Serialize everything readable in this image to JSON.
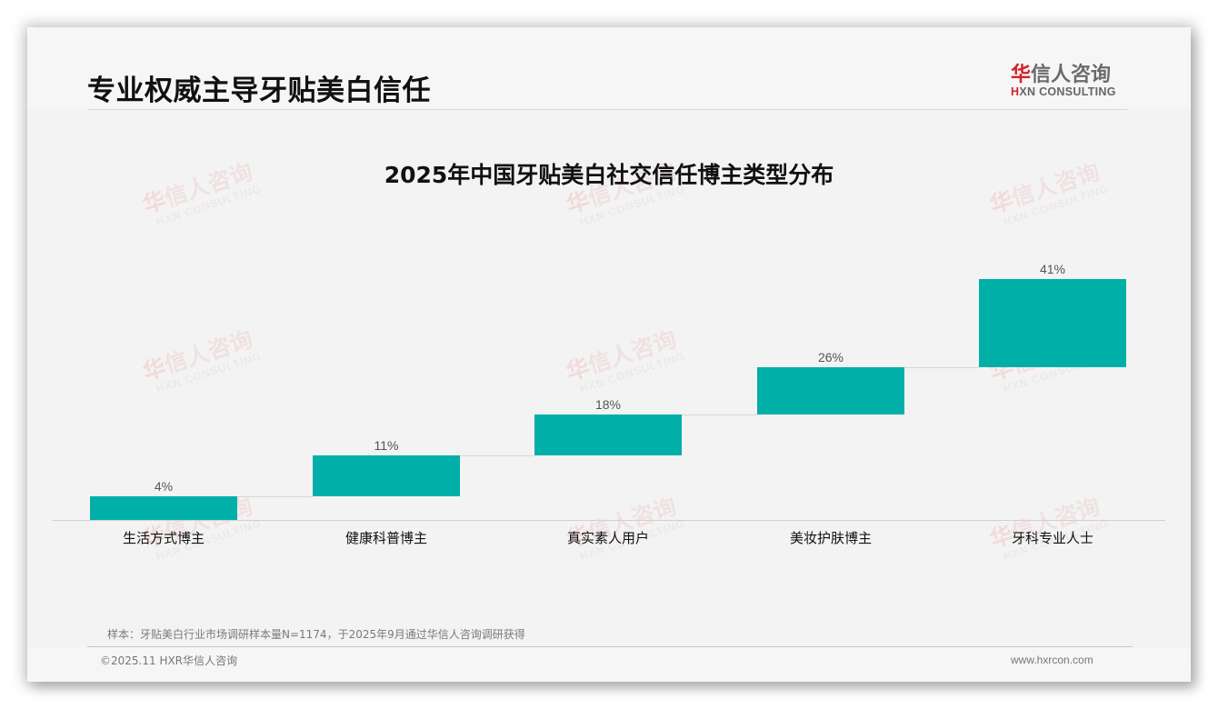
{
  "page": {
    "title": "专业权威主导牙贴美白信任"
  },
  "logo": {
    "cn_accent": "华",
    "cn_rest": "信人咨询",
    "en_accent": "H",
    "en_rest": "XN CONSULTING"
  },
  "watermark": {
    "cn_accent": "华",
    "cn_rest": "信人咨询",
    "en": "HXN CONSULTING"
  },
  "colors": {
    "bar": "#00b0a8",
    "logo_accent": "#d1222a"
  },
  "chart_data": {
    "type": "bar",
    "subtype": "waterfall",
    "title": "2025年中国牙贴美白社交信任博主类型分布",
    "categories": [
      "生活方式博主",
      "健康科普博主",
      "真实素人用户",
      "美妆护肤博主",
      "牙科专业人士"
    ],
    "values": [
      4,
      7,
      7,
      8,
      15
    ],
    "cumulative": [
      4,
      11,
      18,
      26,
      41
    ],
    "labels": [
      "4%",
      "11%",
      "18%",
      "26%",
      "41%"
    ],
    "xlabel": "",
    "ylabel": "",
    "ylim": [
      0,
      45
    ],
    "grid": false,
    "legend": "none",
    "unit": "%"
  },
  "footer": {
    "note": "样本：牙贴美白行业市场调研样本量N=1174，于2025年9月通过华信人咨询调研获得",
    "copyright": "©2025.11 HXR华信人咨询",
    "website": "www.hxrcon.com"
  }
}
